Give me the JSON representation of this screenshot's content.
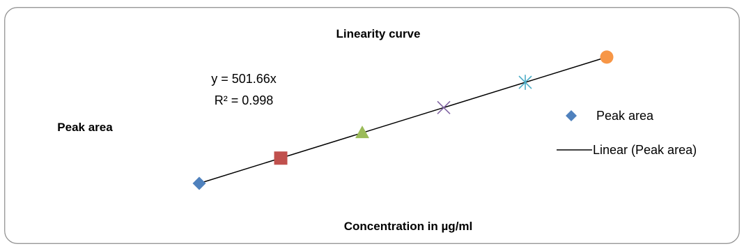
{
  "chart_data": {
    "type": "scatter",
    "title": "Linearity curve",
    "xlabel": "Concentration in µg/ml",
    "ylabel": "Peak area",
    "axes_visible": false,
    "grid": false,
    "legend_position": "right",
    "series": [
      {
        "name": "Peak area",
        "points": [
          {
            "x": 1,
            "y": 501.66,
            "marker": "diamond",
            "color": "#4f81bd"
          },
          {
            "x": 2,
            "y": 1003.32,
            "marker": "square",
            "color": "#c0504d"
          },
          {
            "x": 3,
            "y": 1504.98,
            "marker": "triangle",
            "color": "#9bbb59"
          },
          {
            "x": 4,
            "y": 2006.64,
            "marker": "x",
            "color": "#8064a2"
          },
          {
            "x": 5,
            "y": 2508.3,
            "marker": "asterisk",
            "color": "#4bacc6"
          },
          {
            "x": 6,
            "y": 3009.96,
            "marker": "circle",
            "color": "#f79646"
          }
        ]
      }
    ],
    "trendline": {
      "name": "Linear (Peak area)",
      "type": "linear",
      "slope": 501.66,
      "intercept": 0,
      "color": "#000000",
      "equation": "y = 501.66x",
      "r_squared": "R² = 0.998"
    },
    "legend": [
      {
        "label": "Peak area",
        "symbol": "diamond",
        "color": "#4f81bd"
      },
      {
        "label": "Linear (Peak area)",
        "symbol": "line",
        "color": "#000000"
      }
    ]
  }
}
